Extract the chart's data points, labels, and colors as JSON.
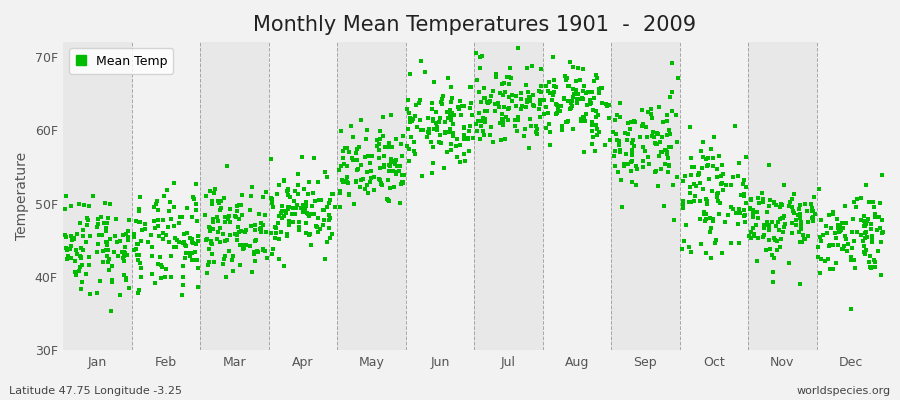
{
  "title": "Monthly Mean Temperatures 1901  -  2009",
  "ylabel": "Temperature",
  "xlabel": "",
  "lat_lon_text": "Latitude 47.75 Longitude -3.25",
  "watermark": "worldspecies.org",
  "legend_label": "Mean Temp",
  "dot_color": "#00BB00",
  "dot_size": 5,
  "ylim": [
    30,
    72
  ],
  "yticks": [
    30,
    40,
    50,
    60,
    70
  ],
  "ytick_labels": [
    "30F",
    "40F",
    "50F",
    "60F",
    "70F"
  ],
  "months": [
    "Jan",
    "Feb",
    "Mar",
    "Apr",
    "May",
    "Jun",
    "Jul",
    "Aug",
    "Sep",
    "Oct",
    "Nov",
    "Dec"
  ],
  "monthly_means_F": [
    44.5,
    44.5,
    46.5,
    49.0,
    54.5,
    60.5,
    63.5,
    63.5,
    58.0,
    51.0,
    47.5,
    46.0
  ],
  "monthly_stds_F": [
    3.5,
    3.5,
    2.8,
    2.8,
    3.0,
    3.0,
    3.0,
    2.8,
    3.5,
    3.5,
    2.8,
    3.0
  ],
  "n_years": 109,
  "seed": 42,
  "bg_color": "#f2f2f2",
  "stripe_even_color": "#e8e8e8",
  "stripe_odd_color": "#f2f2f2",
  "grid_color": "#888888",
  "title_fontsize": 15,
  "axis_label_fontsize": 10,
  "tick_fontsize": 9,
  "footer_fontsize": 8
}
